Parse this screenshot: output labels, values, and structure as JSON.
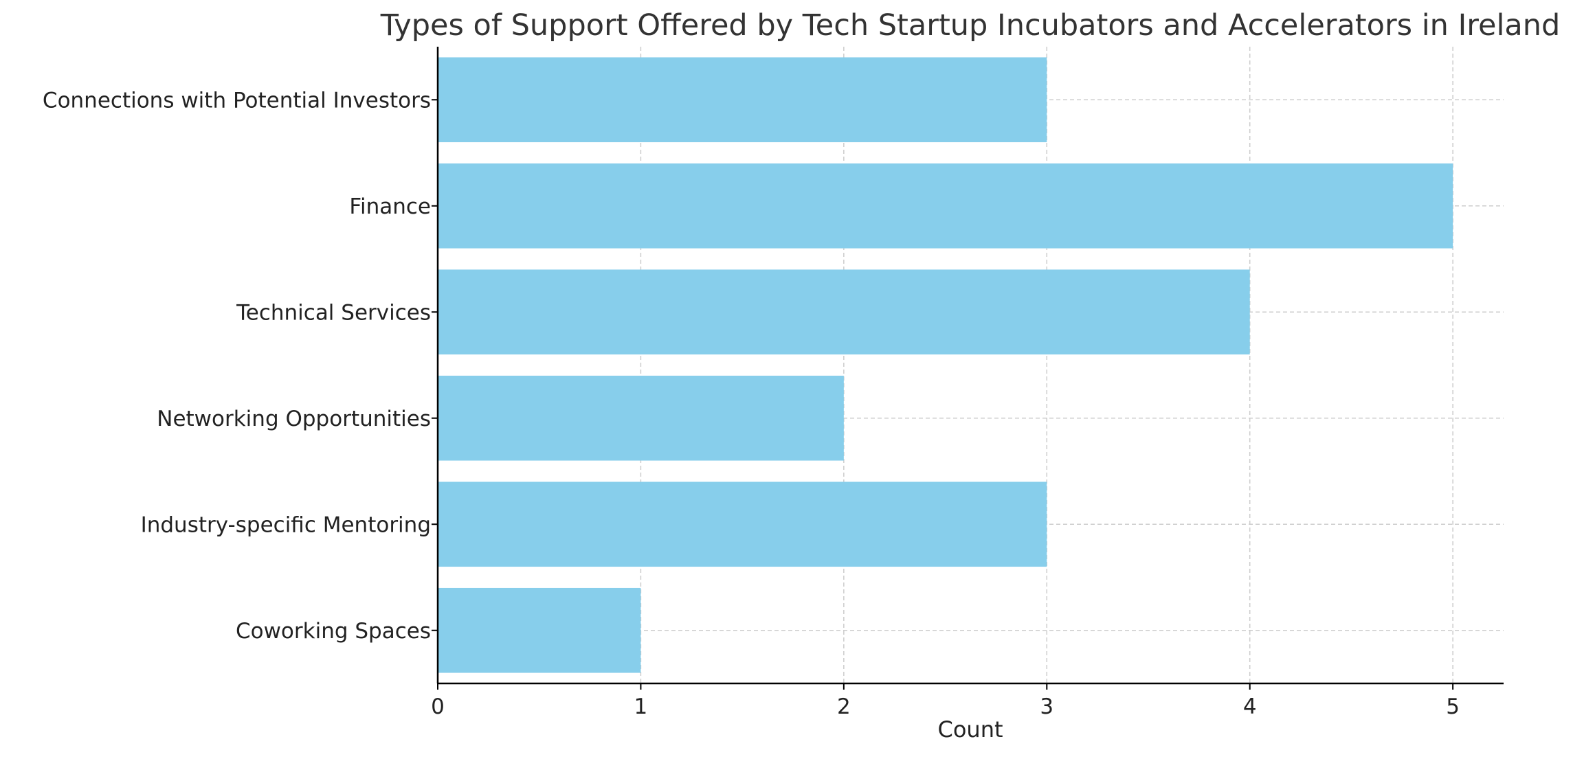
{
  "chart_data": {
    "type": "bar",
    "orientation": "horizontal",
    "title": "Types of Support Offered by Tech Startup Incubators and Accelerators in Ireland",
    "xlabel": "Count",
    "ylabel": "",
    "categories": [
      "Connections with Potential Investors",
      "Finance",
      "Technical Services",
      "Networking Opportunities",
      "Industry-specific Mentoring",
      "Coworking Spaces"
    ],
    "values": [
      3,
      5,
      4,
      2,
      3,
      1
    ],
    "xlim": [
      0,
      5.25
    ],
    "xticks": [
      0,
      1,
      2,
      3,
      4,
      5
    ],
    "grid": true,
    "legend": "none",
    "colors": {
      "bar": "#87ceeb",
      "grid": "#cccccc",
      "axis": "#000000",
      "text": "#222222",
      "title": "#333333"
    }
  }
}
